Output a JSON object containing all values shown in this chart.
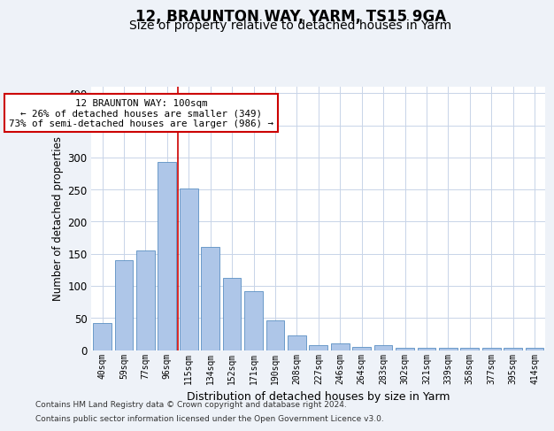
{
  "title": "12, BRAUNTON WAY, YARM, TS15 9GA",
  "subtitle": "Size of property relative to detached houses in Yarm",
  "xlabel": "Distribution of detached houses by size in Yarm",
  "ylabel": "Number of detached properties",
  "categories": [
    "40sqm",
    "59sqm",
    "77sqm",
    "96sqm",
    "115sqm",
    "134sqm",
    "152sqm",
    "171sqm",
    "190sqm",
    "208sqm",
    "227sqm",
    "246sqm",
    "264sqm",
    "283sqm",
    "302sqm",
    "321sqm",
    "339sqm",
    "358sqm",
    "377sqm",
    "395sqm",
    "414sqm"
  ],
  "values": [
    42,
    140,
    155,
    293,
    251,
    160,
    112,
    91,
    46,
    23,
    8,
    10,
    5,
    8,
    3,
    4,
    3,
    4,
    3,
    3,
    3
  ],
  "bar_color": "#aec6e8",
  "bar_edge_color": "#5a8fc2",
  "vline_x": 3.5,
  "vline_color": "#cc0000",
  "annotation_text": "12 BRAUNTON WAY: 100sqm\n← 26% of detached houses are smaller (349)\n73% of semi-detached houses are larger (986) →",
  "annotation_box_color": "#ffffff",
  "annotation_box_edge_color": "#cc0000",
  "footer_line1": "Contains HM Land Registry data © Crown copyright and database right 2024.",
  "footer_line2": "Contains public sector information licensed under the Open Government Licence v3.0.",
  "ylim": [
    0,
    410
  ],
  "yticks": [
    0,
    50,
    100,
    150,
    200,
    250,
    300,
    350,
    400
  ],
  "bg_color": "#eef2f8",
  "plot_bg_color": "#ffffff",
  "grid_color": "#c8d4e8",
  "title_fontsize": 12,
  "subtitle_fontsize": 10,
  "footer_fontsize": 6.5
}
